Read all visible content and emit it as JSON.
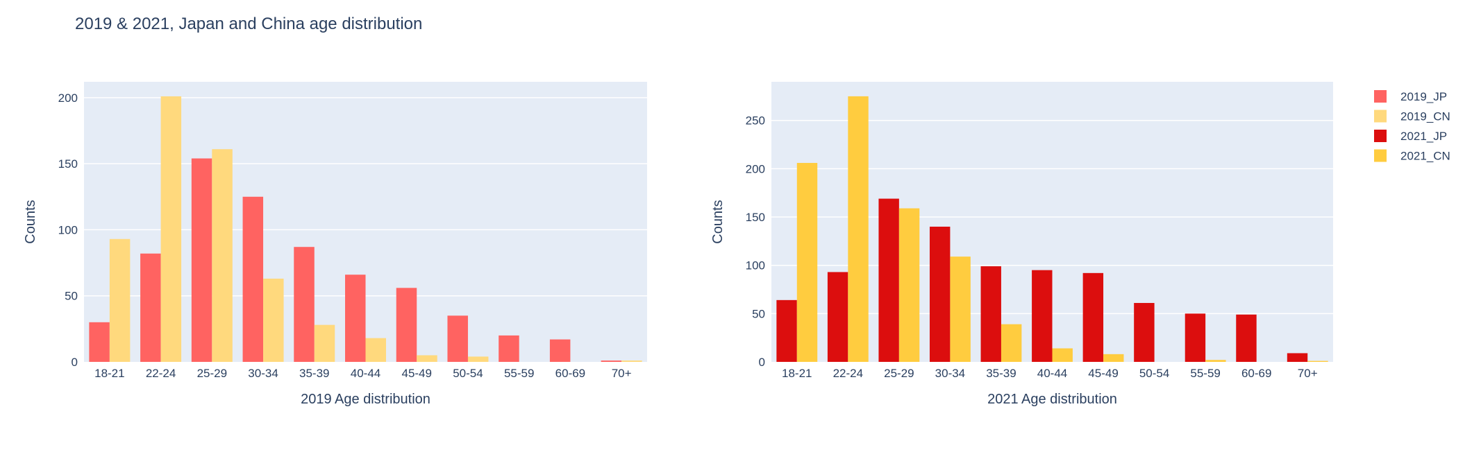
{
  "title": "2019 & 2021, Japan and China age distribution",
  "colors": {
    "plot_bg": "#e5ecf6",
    "grid": "#ffffff",
    "text": "#2a3f5f"
  },
  "legend": {
    "placement": "right",
    "items": [
      {
        "name": "2019_JP",
        "color": "#ff6361"
      },
      {
        "name": "2019_CN",
        "color": "#ffd97d"
      },
      {
        "name": "2021_JP",
        "color": "#dc0e0e"
      },
      {
        "name": "2021_CN",
        "color": "#ffcc3f"
      }
    ]
  },
  "chart_data": [
    {
      "type": "bar",
      "barmode": "group",
      "xlabel": "2019 Age distribution",
      "ylabel": "Counts",
      "ylim": [
        0,
        212
      ],
      "yticks": [
        0,
        50,
        100,
        150,
        200
      ],
      "grid": true,
      "categories": [
        "18-21",
        "22-24",
        "25-29",
        "30-34",
        "35-39",
        "40-44",
        "45-49",
        "50-54",
        "55-59",
        "60-69",
        "70+"
      ],
      "series": [
        {
          "name": "2019_JP",
          "color": "#ff6361",
          "values": [
            30,
            82,
            154,
            125,
            87,
            66,
            56,
            35,
            20,
            17,
            1
          ]
        },
        {
          "name": "2019_CN",
          "color": "#ffd97d",
          "values": [
            93,
            201,
            161,
            63,
            28,
            18,
            5,
            4,
            0,
            0,
            1
          ]
        }
      ]
    },
    {
      "type": "bar",
      "barmode": "group",
      "xlabel": "2021 Age distribution",
      "ylabel": "Counts",
      "ylim": [
        0,
        290
      ],
      "yticks": [
        0,
        50,
        100,
        150,
        200,
        250
      ],
      "grid": true,
      "categories": [
        "18-21",
        "22-24",
        "25-29",
        "30-34",
        "35-39",
        "40-44",
        "45-49",
        "50-54",
        "55-59",
        "60-69",
        "70+"
      ],
      "series": [
        {
          "name": "2021_JP",
          "color": "#dc0e0e",
          "values": [
            64,
            93,
            169,
            140,
            99,
            95,
            92,
            61,
            50,
            49,
            9
          ]
        },
        {
          "name": "2021_CN",
          "color": "#ffcc3f",
          "values": [
            206,
            275,
            159,
            109,
            39,
            14,
            8,
            0,
            2,
            0,
            1
          ]
        }
      ]
    }
  ]
}
